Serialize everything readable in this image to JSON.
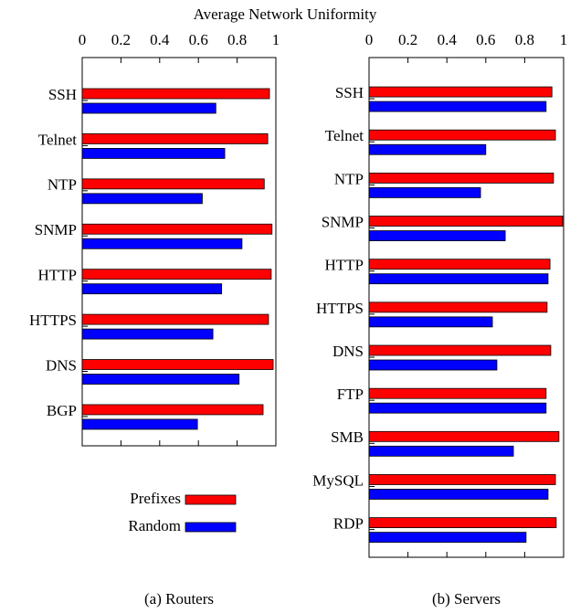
{
  "chart_data": [
    {
      "type": "barh",
      "xlabel": "Average Network Uniformity",
      "caption": "(a) Routers",
      "categories": [
        "SSH",
        "Telnet",
        "NTP",
        "SNMP",
        "HTTP",
        "HTTPS",
        "DNS",
        "BGP"
      ],
      "series": [
        {
          "name": "Prefixes",
          "color": "#ff0000",
          "values": [
            0.967,
            0.958,
            0.94,
            0.98,
            0.976,
            0.962,
            0.986,
            0.934
          ]
        },
        {
          "name": "Random",
          "color": "#0000ff",
          "values": [
            0.69,
            0.736,
            0.62,
            0.825,
            0.72,
            0.675,
            0.81,
            0.595
          ]
        }
      ],
      "xlim": [
        0,
        1
      ],
      "xticks": [
        0,
        0.2,
        0.4,
        0.6,
        0.8,
        1
      ],
      "grid": false,
      "legend": "bottom"
    },
    {
      "type": "barh",
      "caption": "(b) Servers",
      "categories": [
        "SSH",
        "Telnet",
        "NTP",
        "SNMP",
        "HTTP",
        "HTTPS",
        "DNS",
        "FTP",
        "SMB",
        "MySQL",
        "RDP"
      ],
      "series": [
        {
          "color": "#ff0000",
          "values": [
            0.94,
            0.958,
            0.948,
            0.995,
            0.93,
            0.915,
            0.934,
            0.91,
            0.976,
            0.958,
            0.962
          ]
        },
        {
          "color": "#0000ff",
          "values": [
            0.91,
            0.6,
            0.573,
            0.7,
            0.92,
            0.634,
            0.657,
            0.91,
            0.742,
            0.92,
            0.807
          ]
        }
      ],
      "xlim": [
        0,
        1
      ],
      "xticks": [
        0,
        0.2,
        0.4,
        0.6,
        0.8,
        1
      ],
      "grid": false
    }
  ]
}
